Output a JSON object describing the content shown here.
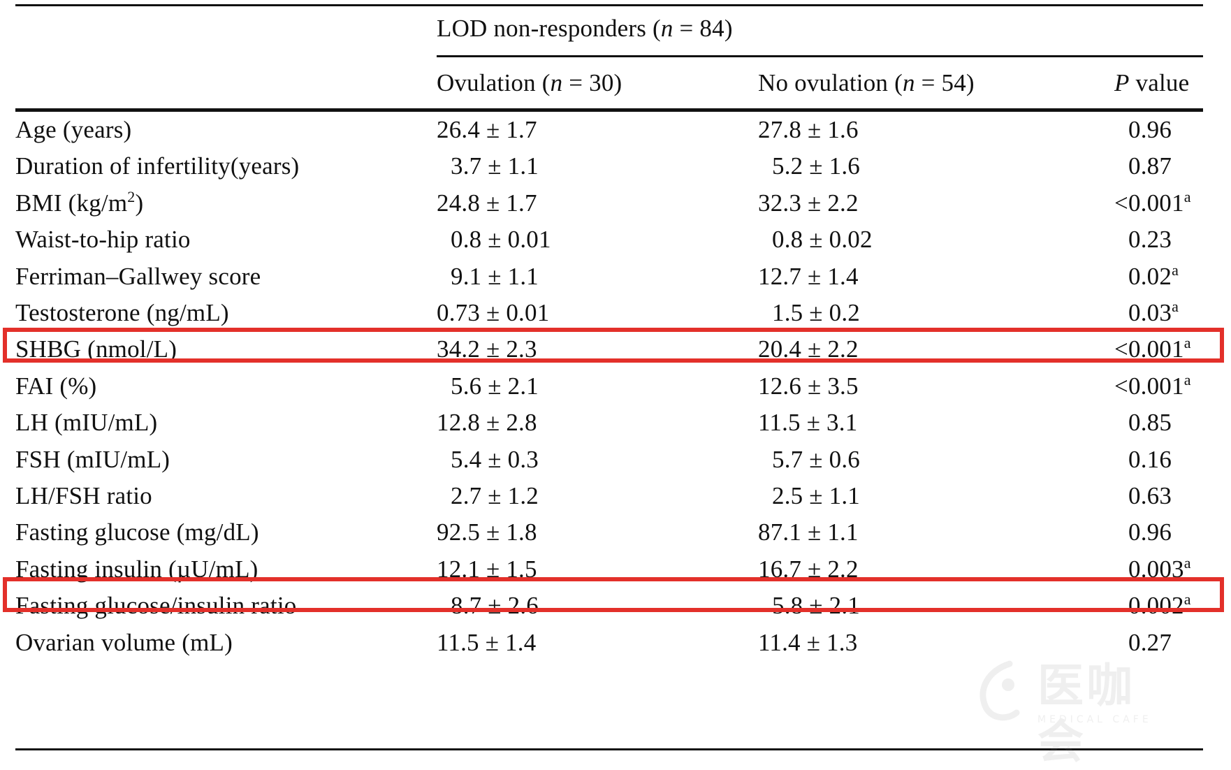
{
  "header": {
    "span_title": "LOD non-responders (",
    "span_n": "n",
    "span_eq": " = 84)",
    "ovulation": {
      "prefix": "Ovulation (",
      "n": "n",
      "rest": " = 30)"
    },
    "no_ovulation": {
      "prefix": "No ovulation (",
      "n": "n",
      "rest": " = 54)"
    },
    "p_value": {
      "p": "P",
      "rest": " value"
    }
  },
  "rows": [
    {
      "label": "Age (years)",
      "ov": "26.4 ± 1.7",
      "noov": "27.8 ± 1.6",
      "p": "0.96",
      "sup": "",
      "ov_indent": false,
      "noov_indent": false,
      "p_indent": true
    },
    {
      "label": "Duration of infertility(years)",
      "ov": "3.7 ± 1.1",
      "noov": "5.2 ± 1.6",
      "p": "0.87",
      "sup": "",
      "ov_indent": true,
      "noov_indent": true,
      "p_indent": true
    },
    {
      "label_pre": "BMI (kg/m",
      "label_sup": "2",
      "label_post": ")",
      "ov": "24.8 ± 1.7",
      "noov": "32.3 ± 2.2",
      "p": "<0.001",
      "sup": "a",
      "ov_indent": false,
      "noov_indent": false,
      "p_indent": false
    },
    {
      "label": "Waist-to-hip ratio",
      "ov": "0.8 ± 0.01",
      "noov": "0.8 ± 0.02",
      "p": "0.23",
      "sup": "",
      "ov_indent": true,
      "noov_indent": true,
      "p_indent": true
    },
    {
      "label": "Ferriman–Gallwey score",
      "ov": "9.1 ± 1.1",
      "noov": "12.7 ± 1.4",
      "p": "0.02",
      "sup": "a",
      "ov_indent": true,
      "noov_indent": false,
      "p_indent": true
    },
    {
      "label": "Testosterone (ng/mL)",
      "ov": "0.73 ± 0.01",
      "noov": "1.5 ± 0.2",
      "p": "0.03",
      "sup": "a",
      "ov_indent": false,
      "noov_indent": true,
      "p_indent": true
    },
    {
      "label": "SHBG (nmol/L)",
      "ov": "34.2 ± 2.3",
      "noov": "20.4 ± 2.2",
      "p": "<0.001",
      "sup": "a",
      "ov_indent": false,
      "noov_indent": false,
      "p_indent": false
    },
    {
      "label": "FAI (%)",
      "ov": "5.6 ± 2.1",
      "noov": "12.6 ± 3.5",
      "p": "<0.001",
      "sup": "a",
      "ov_indent": true,
      "noov_indent": false,
      "p_indent": false
    },
    {
      "label": "LH (mIU/mL)",
      "ov": "12.8 ± 2.8",
      "noov": "11.5 ± 3.1",
      "p": "0.85",
      "sup": "",
      "ov_indent": false,
      "noov_indent": false,
      "p_indent": true
    },
    {
      "label": "FSH (mIU/mL)",
      "ov": "5.4 ± 0.3",
      "noov": "5.7 ± 0.6",
      "p": "0.16",
      "sup": "",
      "ov_indent": true,
      "noov_indent": true,
      "p_indent": true
    },
    {
      "label": "LH/FSH ratio",
      "ov": "2.7 ± 1.2",
      "noov": "2.5 ± 1.1",
      "p": "0.63",
      "sup": "",
      "ov_indent": true,
      "noov_indent": true,
      "p_indent": true
    },
    {
      "label": "Fasting glucose (mg/dL)",
      "ov": "92.5 ± 1.8",
      "noov": "87.1 ± 1.1",
      "p": "0.96",
      "sup": "",
      "ov_indent": false,
      "noov_indent": false,
      "p_indent": true
    },
    {
      "label": "Fasting insulin (µU/mL)",
      "ov": "12.1 ± 1.5",
      "noov": "16.7 ± 2.2",
      "p": "0.003",
      "sup": "a",
      "ov_indent": false,
      "noov_indent": false,
      "p_indent": true
    },
    {
      "label": "Fasting glucose/insulin ratio",
      "ov": "8.7 ± 2.6",
      "noov": "5.8 ± 2.1",
      "p": "0.002",
      "sup": "a",
      "ov_indent": true,
      "noov_indent": true,
      "p_indent": true
    },
    {
      "label": "Ovarian volume (mL)",
      "ov": "11.5 ± 1.4",
      "noov": "11.4 ± 1.3",
      "p": "0.27",
      "sup": "",
      "ov_indent": false,
      "noov_indent": false,
      "p_indent": true
    }
  ],
  "highlight_color": "#e3302a",
  "highlighted_rows": [
    "Testosterone (ng/mL)",
    "Fasting glucose (mg/dL)"
  ],
  "watermark": {
    "text": "医咖会",
    "sub": "MEDICAL CAFE",
    "icon": "logo-icon"
  }
}
